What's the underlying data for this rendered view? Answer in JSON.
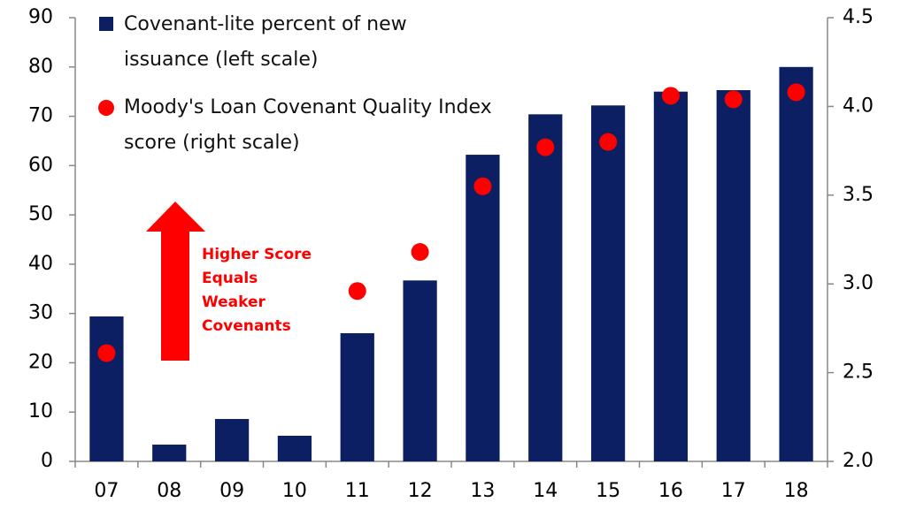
{
  "chart_data": {
    "type": "bar",
    "categories": [
      "07",
      "08",
      "09",
      "10",
      "11",
      "12",
      "13",
      "14",
      "15",
      "16",
      "17",
      "18"
    ],
    "series": [
      {
        "name": "Covenant-lite percent of new issuance (left scale)",
        "type": "bar",
        "color": "#0d1f63",
        "values": [
          29.4,
          3.4,
          8.6,
          5.2,
          26,
          36.7,
          62.2,
          70.4,
          72.2,
          75,
          75.3,
          80
        ]
      },
      {
        "name": "Moody's Loan Covenant Quality Index score (right scale)",
        "type": "scatter",
        "axis": "y2",
        "color": "#ff0000",
        "values": [
          2.61,
          null,
          null,
          null,
          2.96,
          3.18,
          3.55,
          3.77,
          3.8,
          4.06,
          4.04,
          4.08
        ]
      }
    ],
    "ylim": [
      0,
      90
    ],
    "yticks": [
      0,
      10,
      20,
      30,
      40,
      50,
      60,
      70,
      80,
      90
    ],
    "y2lim": [
      2,
      4.5
    ],
    "y2ticks": [
      {
        "value": 2,
        "label": "2.0"
      },
      2.5,
      {
        "value": 3,
        "label": "3.0"
      },
      3.5,
      {
        "value": 4,
        "label": "4.0"
      },
      4.5
    ],
    "annotation": "Higher Score Equals Weaker Covenants",
    "grid": false
  }
}
